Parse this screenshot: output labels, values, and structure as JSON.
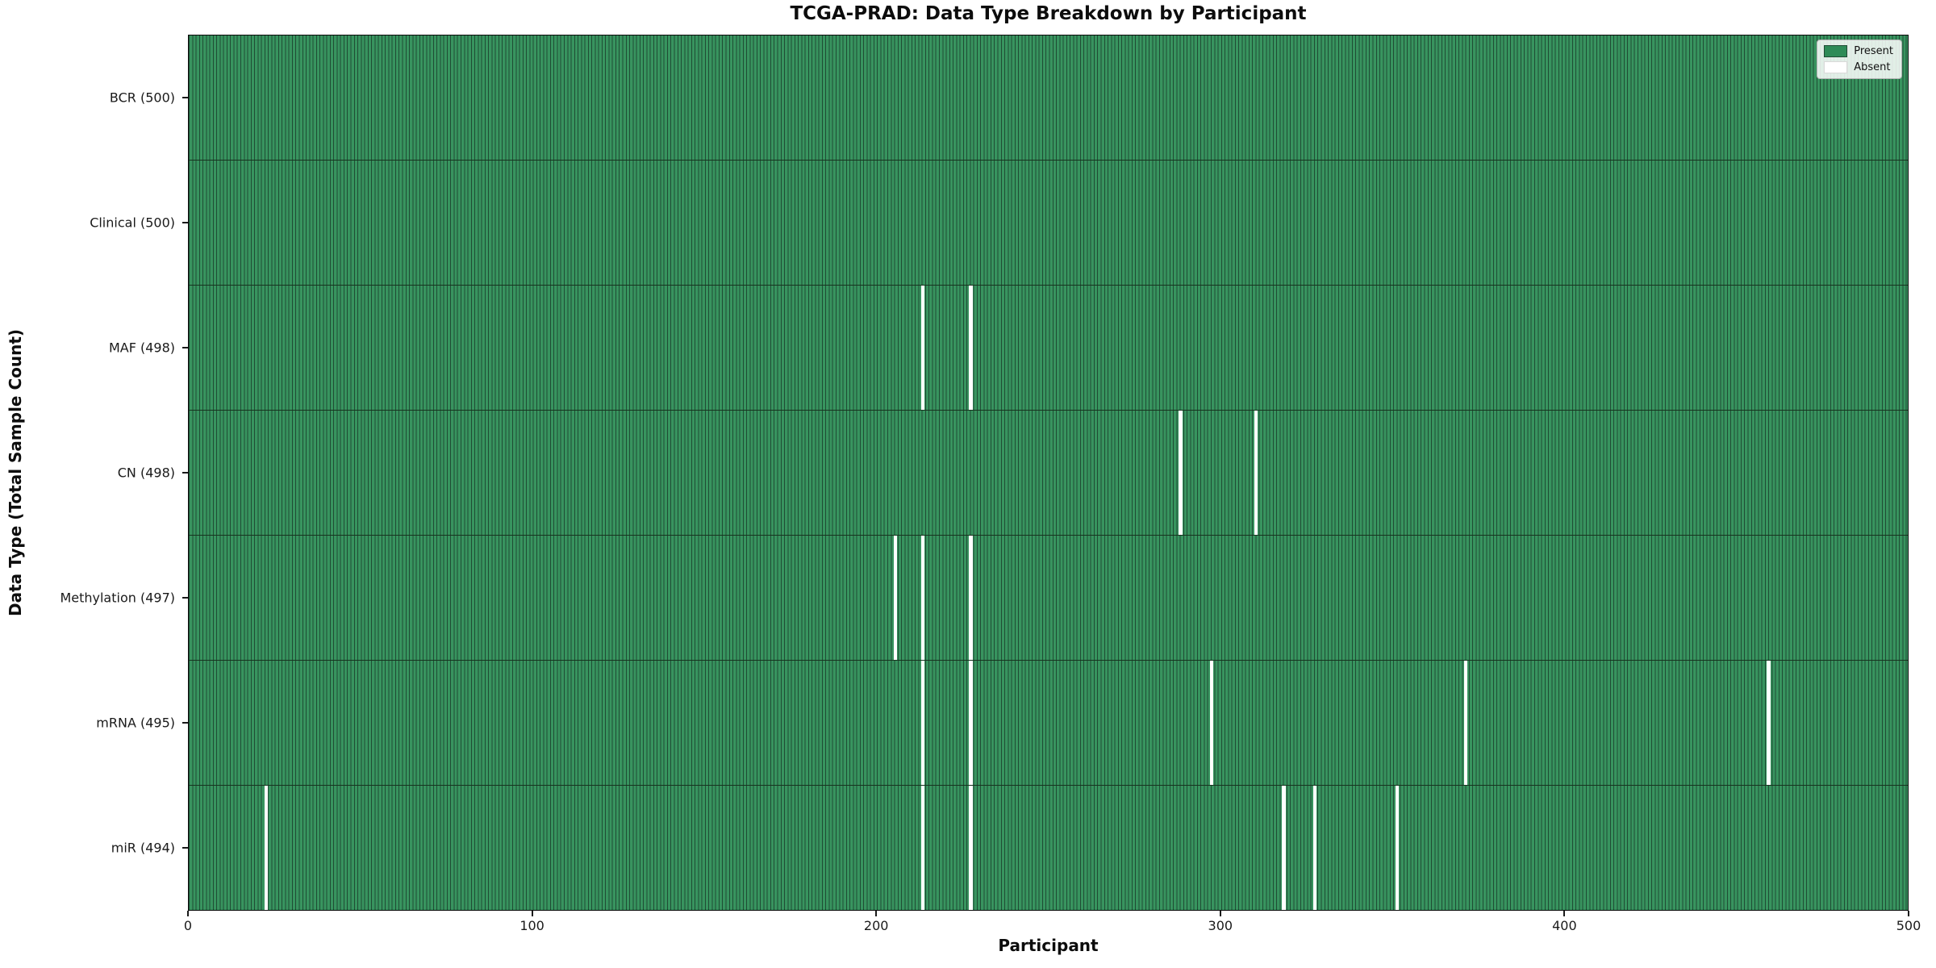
{
  "chart_data": {
    "type": "heatmap",
    "title": "TCGA-PRAD: Data Type Breakdown by Participant",
    "xlabel": "Participant",
    "ylabel": "Data Type (Total Sample Count)",
    "xlim": [
      0,
      500
    ],
    "x_ticks": [
      0,
      100,
      200,
      300,
      400,
      500
    ],
    "n_participants": 500,
    "grid": false,
    "legend": {
      "position": "upper right",
      "entries": [
        {
          "label": "Present",
          "color": "#2e8b57"
        },
        {
          "label": "Absent",
          "color": "#ffffff"
        }
      ]
    },
    "colors": {
      "present_fill": "#38945f",
      "present_base": "#2e8b57",
      "bar_edge": "#1f4c34",
      "absent": "#ffffff"
    },
    "rows": [
      {
        "data_type": "BCR",
        "label": "BCR (500)",
        "total": 500,
        "absent_participants": []
      },
      {
        "data_type": "Clinical",
        "label": "Clinical (500)",
        "total": 500,
        "absent_participants": []
      },
      {
        "data_type": "MAF",
        "label": "MAF (498)",
        "total": 498,
        "absent_participants": [
          213,
          227
        ]
      },
      {
        "data_type": "CN",
        "label": "CN (498)",
        "total": 498,
        "absent_participants": [
          288,
          310
        ]
      },
      {
        "data_type": "Methylation",
        "label": "Methylation (497)",
        "total": 497,
        "absent_participants": [
          205,
          213,
          227
        ]
      },
      {
        "data_type": "mRNA",
        "label": "mRNA (495)",
        "total": 495,
        "absent_participants": [
          213,
          227,
          297,
          371,
          459
        ]
      },
      {
        "data_type": "miR",
        "label": "miR (494)",
        "total": 494,
        "absent_participants": [
          22,
          213,
          227,
          318,
          327,
          351
        ]
      }
    ]
  }
}
